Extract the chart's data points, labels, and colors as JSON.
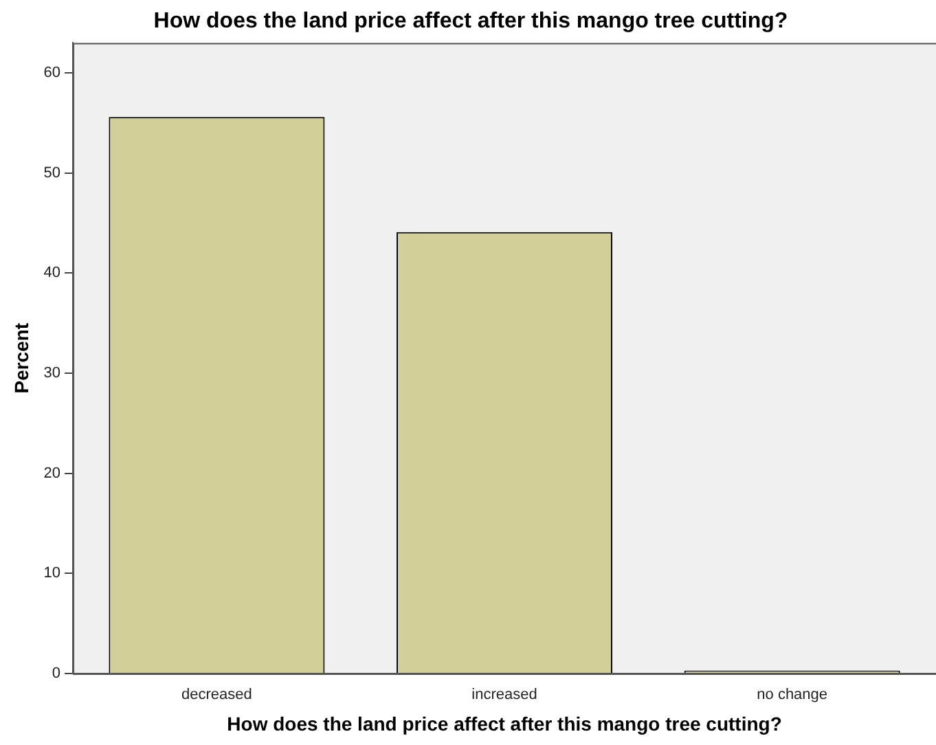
{
  "chart_data": {
    "type": "bar",
    "title": "How does the land price affect after this mango tree cutting?",
    "xlabel": "How does the land price affect after this mango tree cutting?",
    "ylabel": "Percent",
    "categories": [
      "decreased",
      "increased",
      "no change"
    ],
    "values": [
      55.6,
      44.1,
      0.3
    ],
    "color": "#d3cf98",
    "ylim": [
      0,
      63
    ],
    "yticks": [
      0,
      10,
      20,
      30,
      40,
      50,
      60
    ],
    "grid": false,
    "legend": false
  }
}
